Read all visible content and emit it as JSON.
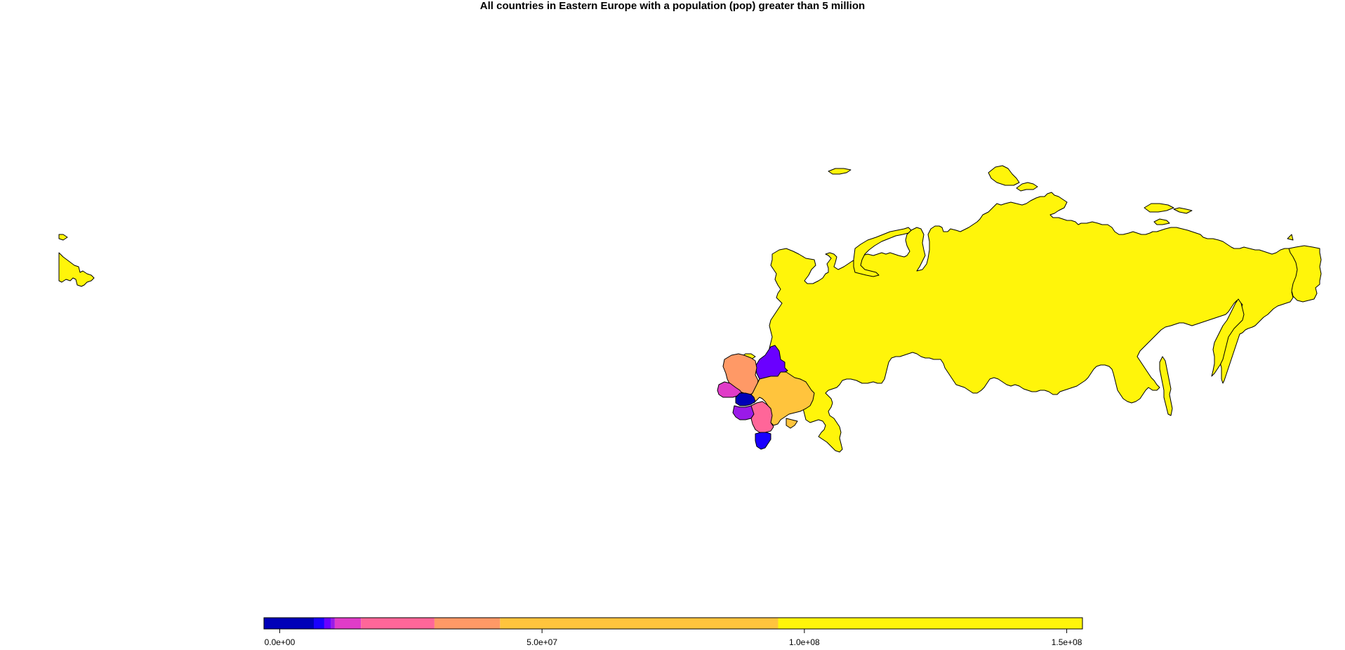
{
  "title": "All countries in Eastern Europe with a population (pop) greater than 5 million",
  "legend": {
    "tick_labels": [
      "0.0e+00",
      "5.0e+07",
      "1.0e+08",
      "1.5e+08"
    ],
    "tick_values": [
      0,
      50000000,
      100000000,
      150000000
    ],
    "range": [
      -3000000,
      153000000
    ],
    "bins": [
      {
        "from": -3000000,
        "to": 6500000,
        "color": "#0000B8"
      },
      {
        "from": 6500000,
        "to": 8500000,
        "color": "#1A00FF"
      },
      {
        "from": 8500000,
        "to": 9800000,
        "color": "#6A00FF"
      },
      {
        "from": 9800000,
        "to": 10500000,
        "color": "#9A1AE8"
      },
      {
        "from": 10500000,
        "to": 15500000,
        "color": "#E03CC8"
      },
      {
        "from": 15500000,
        "to": 29500000,
        "color": "#FF6699"
      },
      {
        "from": 29500000,
        "to": 42000000,
        "color": "#FF9966"
      },
      {
        "from": 42000000,
        "to": 95000000,
        "color": "#FFC43D"
      },
      {
        "from": 95000000,
        "to": 153000000,
        "color": "#FFF50A"
      }
    ]
  },
  "countries": [
    {
      "id": "russia",
      "color": "#FFF50A"
    },
    {
      "id": "poland",
      "color": "#FF9966"
    },
    {
      "id": "belarus",
      "color": "#6A00FF"
    },
    {
      "id": "ukraine",
      "color": "#FFC43D"
    },
    {
      "id": "czechia",
      "color": "#E03CC8"
    },
    {
      "id": "slovakia",
      "color": "#0000B8"
    },
    {
      "id": "hungary",
      "color": "#9A1AE8"
    },
    {
      "id": "romania",
      "color": "#FF6699"
    },
    {
      "id": "bulgaria",
      "color": "#1A00FF"
    }
  ]
}
